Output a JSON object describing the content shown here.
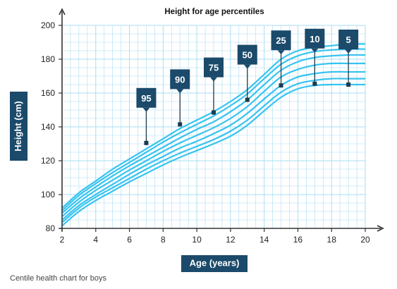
{
  "chart_data": {
    "type": "line",
    "title": "Height for age percentiles",
    "xlabel": "Age (years)",
    "ylabel": "Height (cm)",
    "xlim": [
      2,
      20
    ],
    "ylim": [
      80,
      200
    ],
    "x_ticks": [
      2,
      4,
      6,
      8,
      10,
      12,
      14,
      16,
      18,
      20
    ],
    "y_ticks": [
      80,
      100,
      120,
      140,
      160,
      180,
      200
    ],
    "grid": true,
    "x": [
      2,
      3,
      4,
      5,
      6,
      7,
      8,
      9,
      10,
      11,
      12,
      13,
      14,
      15,
      16,
      17,
      18,
      19,
      20
    ],
    "series": [
      {
        "name": "95",
        "values": [
          92,
          101,
          108,
          115,
          121,
          127,
          133,
          139,
          144,
          149,
          155,
          162,
          171,
          180,
          185,
          187,
          188,
          189,
          189
        ]
      },
      {
        "name": "90",
        "values": [
          90.5,
          99.5,
          106.5,
          113,
          119,
          125,
          131,
          136.5,
          141.5,
          146.5,
          152.5,
          159.5,
          168.5,
          177,
          182,
          184.5,
          185.5,
          186,
          186
        ]
      },
      {
        "name": "75",
        "values": [
          89,
          97.5,
          104.5,
          111,
          117,
          122.5,
          128,
          133.5,
          138.5,
          143,
          149,
          156,
          165,
          173.5,
          178.5,
          181,
          182,
          182.5,
          182.5
        ]
      },
      {
        "name": "50",
        "values": [
          87,
          95.5,
          102.5,
          108.5,
          114.5,
          120,
          125.5,
          130.5,
          135,
          139.5,
          145,
          152,
          161,
          169.5,
          174,
          176.5,
          177.5,
          177.5,
          177.5
        ]
      },
      {
        "name": "25",
        "values": [
          85,
          93.5,
          100,
          106,
          112,
          117.5,
          122.5,
          127.5,
          131.5,
          136,
          141,
          148,
          156.5,
          164.5,
          169.5,
          171.5,
          172.5,
          172.5,
          172.5
        ]
      },
      {
        "name": "10",
        "values": [
          83.5,
          92,
          98.5,
          104,
          109.5,
          115,
          120,
          124.5,
          128.5,
          132.5,
          137.5,
          144,
          152.5,
          160.5,
          165.5,
          167.5,
          168.5,
          168.5,
          168.5
        ]
      },
      {
        "name": "5",
        "values": [
          81.5,
          90,
          96.5,
          102,
          107.5,
          112.5,
          117.5,
          122,
          126,
          130,
          134.5,
          141,
          149.5,
          157.5,
          162.5,
          164.5,
          165,
          165,
          165
        ]
      }
    ],
    "annotations": [
      {
        "label": "95",
        "x": 7,
        "y": 130.5
      },
      {
        "label": "90",
        "x": 9,
        "y": 141.5
      },
      {
        "label": "75",
        "x": 11,
        "y": 148.5
      },
      {
        "label": "50",
        "x": 13,
        "y": 156
      },
      {
        "label": "25",
        "x": 15,
        "y": 164.5
      },
      {
        "label": "10",
        "x": 17,
        "y": 165.5
      },
      {
        "label": "5",
        "x": 19,
        "y": 165
      }
    ]
  },
  "caption": "Centile health chart for boys",
  "colors": {
    "line": "#37c3f0",
    "grid": "#a9def3",
    "axis": "#333333",
    "label_box": "#1b4a6b",
    "label_text": "#ffffff"
  }
}
